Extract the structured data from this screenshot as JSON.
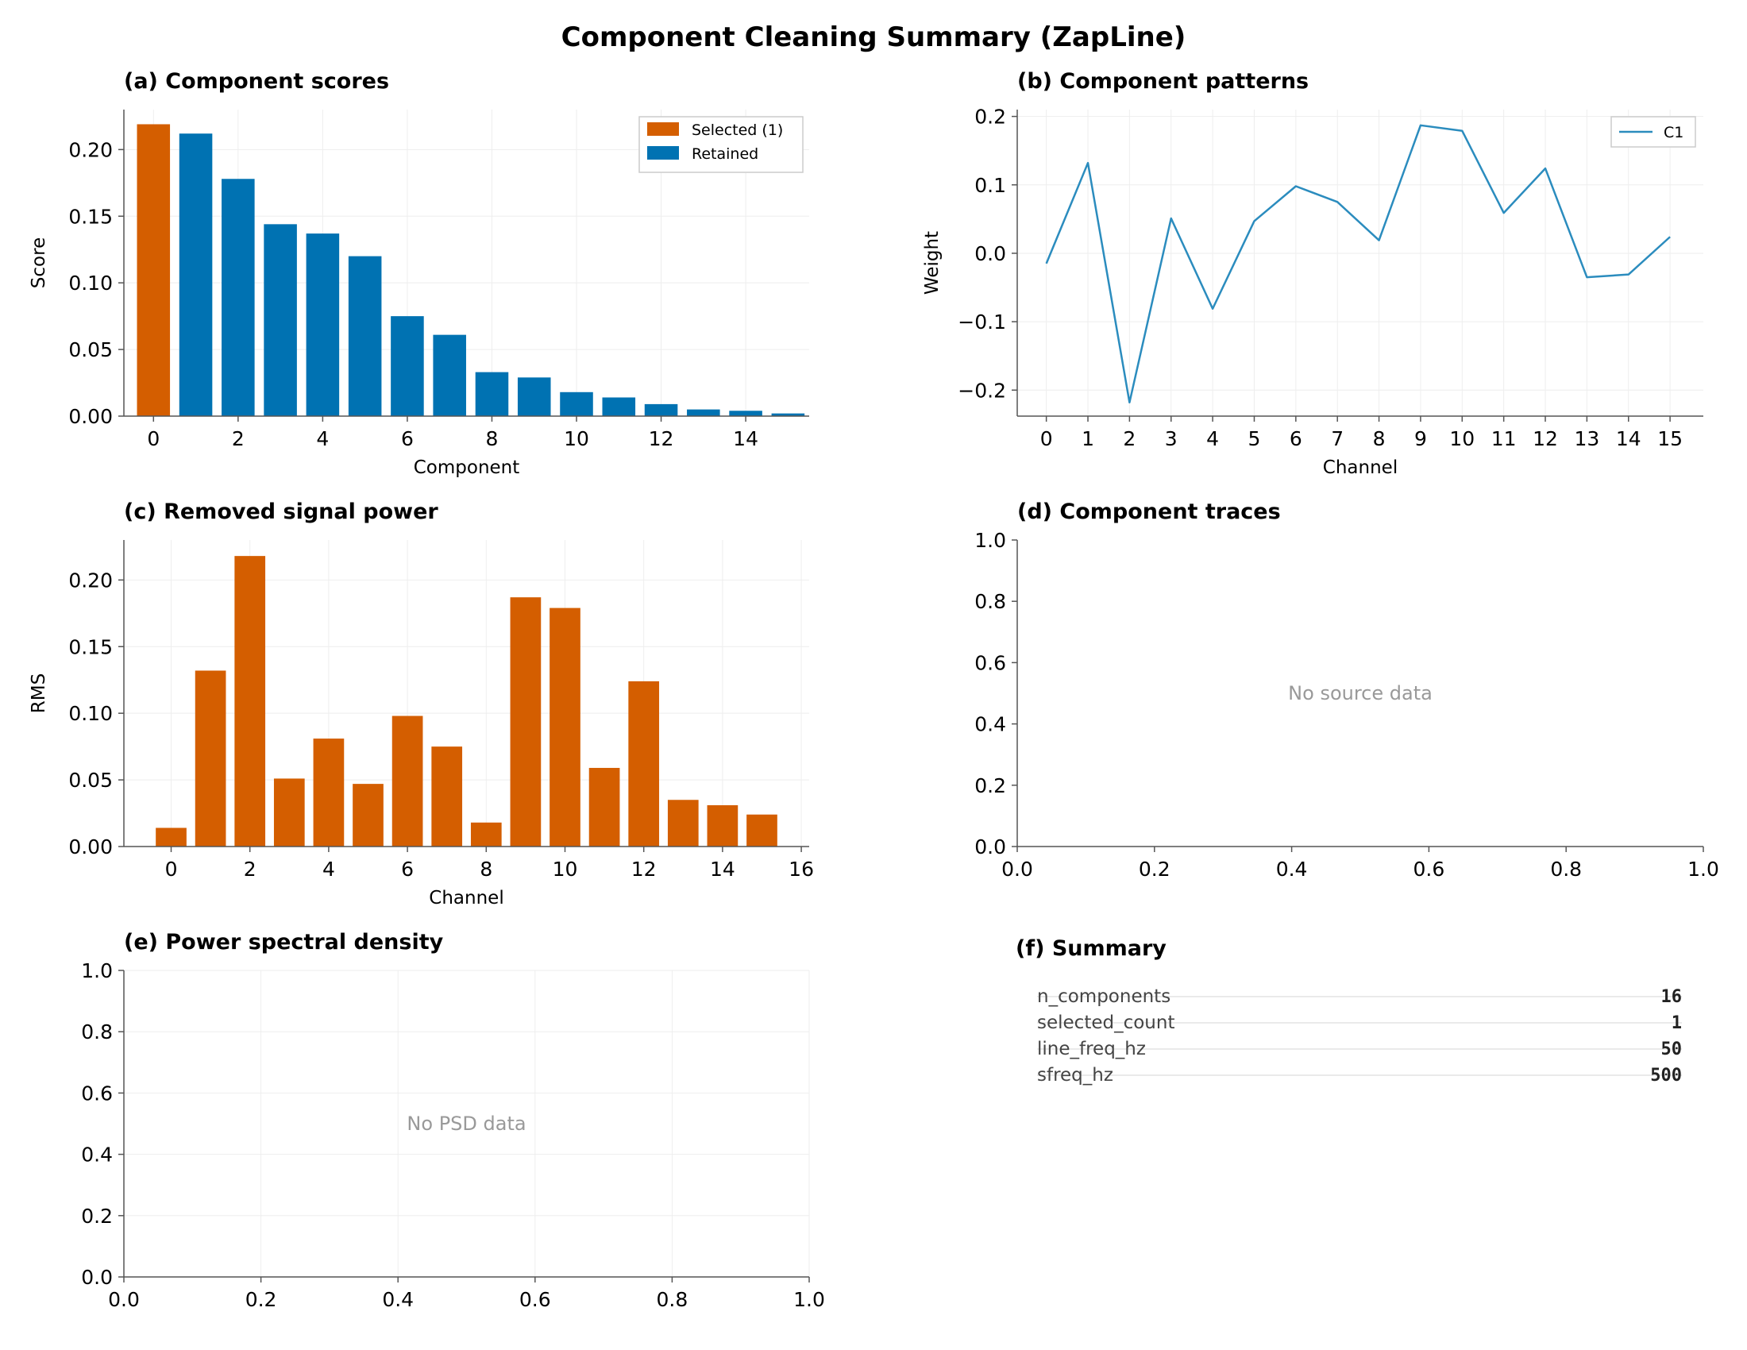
{
  "figure": {
    "title": "Component Cleaning Summary (ZapLine)"
  },
  "colors": {
    "selected": "#d45e00",
    "retained": "#0072b2",
    "line": "#2b8cbe",
    "grid": "#eeeeee",
    "axis": "#555555",
    "muted": "#999999"
  },
  "chart_data": [
    {
      "type": "bar",
      "panel": "a",
      "title": "(a)  Component scores",
      "xlabel": "Component",
      "ylabel": "Score",
      "xlim": [
        -0.7,
        15.5
      ],
      "ylim": [
        0,
        0.23
      ],
      "xticks": [
        0,
        2,
        4,
        6,
        8,
        10,
        12,
        14
      ],
      "yticks": [
        0.0,
        0.05,
        0.1,
        0.15,
        0.2
      ],
      "grid": true,
      "legend_position": "top-right",
      "legend": [
        {
          "label": "Selected (1)",
          "color": "#d45e00"
        },
        {
          "label": "Retained",
          "color": "#0072b2"
        }
      ],
      "x": [
        0,
        1,
        2,
        3,
        4,
        5,
        6,
        7,
        8,
        9,
        10,
        11,
        12,
        13,
        14,
        15
      ],
      "values": [
        0.219,
        0.212,
        0.178,
        0.144,
        0.137,
        0.12,
        0.075,
        0.061,
        0.033,
        0.029,
        0.018,
        0.014,
        0.009,
        0.005,
        0.004,
        0.002
      ],
      "selected": [
        true,
        false,
        false,
        false,
        false,
        false,
        false,
        false,
        false,
        false,
        false,
        false,
        false,
        false,
        false,
        false
      ]
    },
    {
      "type": "line",
      "panel": "b",
      "title": "(b)  Component patterns",
      "xlabel": "Channel",
      "ylabel": "Weight",
      "xlim": [
        -0.7,
        15.8
      ],
      "ylim": [
        -0.238,
        0.21
      ],
      "xticks": [
        0,
        1,
        2,
        3,
        4,
        5,
        6,
        7,
        8,
        9,
        10,
        11,
        12,
        13,
        14,
        15
      ],
      "yticks": [
        -0.2,
        -0.1,
        0.0,
        0.1,
        0.2
      ],
      "grid": true,
      "legend_position": "top-right",
      "series": [
        {
          "name": "C1",
          "x": [
            0,
            1,
            2,
            3,
            4,
            5,
            6,
            7,
            8,
            9,
            10,
            11,
            12,
            13,
            14,
            15
          ],
          "values": [
            -0.015,
            0.132,
            -0.218,
            0.051,
            -0.081,
            0.047,
            0.098,
            0.075,
            0.019,
            0.187,
            0.179,
            0.059,
            0.124,
            -0.035,
            -0.031,
            0.024
          ]
        }
      ]
    },
    {
      "type": "bar",
      "panel": "c",
      "title": "(c)  Removed signal power",
      "xlabel": "Channel",
      "ylabel": "RMS",
      "xlim": [
        -1.2,
        16.2
      ],
      "ylim": [
        0,
        0.23
      ],
      "xticks": [
        0,
        2,
        4,
        6,
        8,
        10,
        12,
        14,
        16
      ],
      "yticks": [
        0.0,
        0.05,
        0.1,
        0.15,
        0.2
      ],
      "grid": true,
      "x": [
        0,
        1,
        2,
        3,
        4,
        5,
        6,
        7,
        8,
        9,
        10,
        11,
        12,
        13,
        14,
        15
      ],
      "values": [
        0.014,
        0.132,
        0.218,
        0.051,
        0.081,
        0.047,
        0.098,
        0.075,
        0.018,
        0.187,
        0.179,
        0.059,
        0.124,
        0.035,
        0.031,
        0.024
      ]
    },
    {
      "type": "line",
      "panel": "d",
      "title": "(d)  Component traces",
      "xlim": [
        0,
        1
      ],
      "ylim": [
        0,
        1
      ],
      "xticks": [
        0.0,
        0.2,
        0.4,
        0.6,
        0.8,
        1.0
      ],
      "yticks": [
        0.0,
        0.2,
        0.4,
        0.6,
        0.8,
        1.0
      ],
      "grid": false,
      "message": "No source data",
      "series": []
    },
    {
      "type": "line",
      "panel": "e",
      "title": "(e)  Power spectral density",
      "xlim": [
        0,
        1
      ],
      "ylim": [
        0,
        1
      ],
      "xticks": [
        0.0,
        0.2,
        0.4,
        0.6,
        0.8,
        1.0
      ],
      "yticks": [
        0.0,
        0.2,
        0.4,
        0.6,
        0.8,
        1.0
      ],
      "grid": true,
      "message": "No PSD data",
      "series": []
    }
  ],
  "summary": {
    "title": "(f)  Summary",
    "rows": [
      {
        "key": "n_components",
        "value": "16"
      },
      {
        "key": "selected_count",
        "value": "1"
      },
      {
        "key": "line_freq_hz",
        "value": "50"
      },
      {
        "key": "sfreq_hz",
        "value": "500"
      }
    ]
  }
}
